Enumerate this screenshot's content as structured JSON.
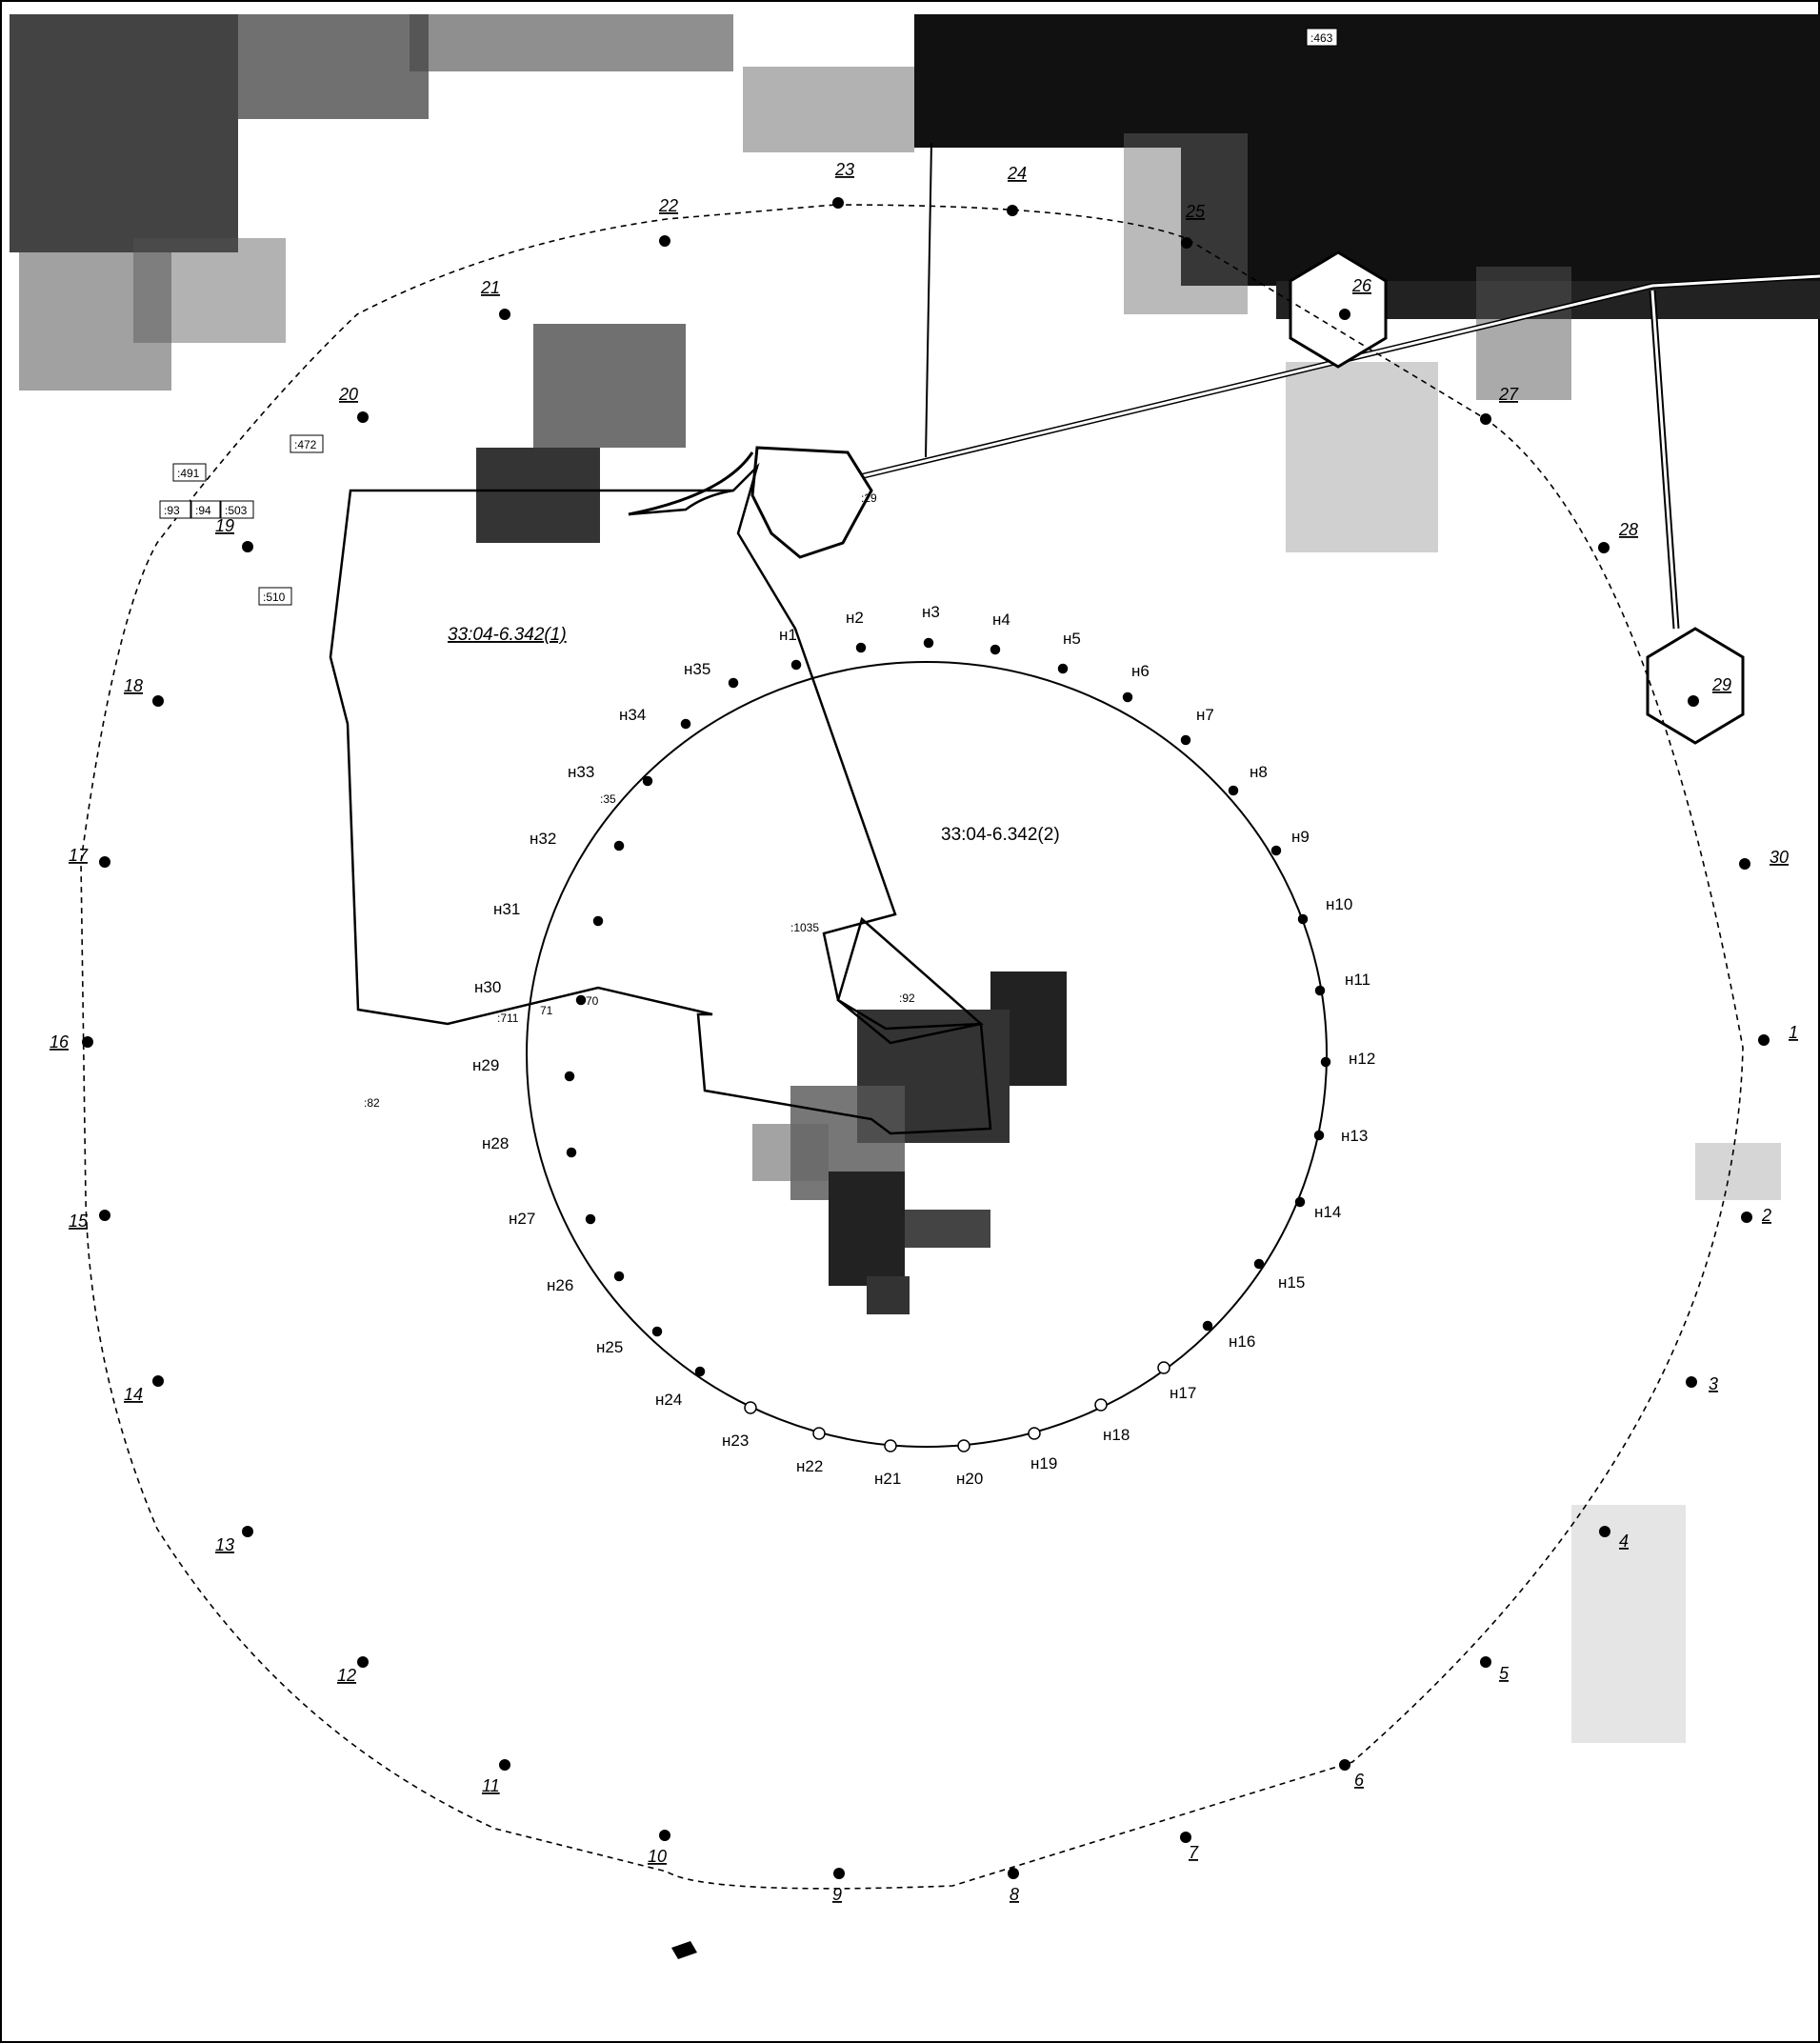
{
  "map": {
    "parcel_labels": {
      "p1": "33:04-6.342(1)",
      "p2": "33:04-6.342(2)"
    },
    "small_labels": {
      "top_tag": ":463",
      "l472": ":472",
      "l491": ":491",
      "l93": ":93",
      "l94": ":94",
      "l503": ":503",
      "l510": ":510",
      "l1035": ":1035",
      "l92": ":92",
      "l35": ":35",
      "l711": ":711",
      "l71": "71",
      "l70": "70",
      "l82": ":82",
      "l29": ":29"
    },
    "outer_points": [
      "1",
      "2",
      "3",
      "4",
      "5",
      "6",
      "7",
      "8",
      "9",
      "10",
      "11",
      "12",
      "13",
      "14",
      "15",
      "16",
      "17",
      "18",
      "19",
      "20",
      "21",
      "22",
      "23",
      "24",
      "25",
      "26",
      "27",
      "28",
      "29",
      "30"
    ],
    "inner_points": [
      "н1",
      "н2",
      "н3",
      "н4",
      "н5",
      "н6",
      "н7",
      "н8",
      "н9",
      "н10",
      "н11",
      "н12",
      "н13",
      "н14",
      "н15",
      "н16",
      "н17",
      "н18",
      "н19",
      "н20",
      "н21",
      "н22",
      "н23",
      "н24",
      "н25",
      "н26",
      "н27",
      "н28",
      "н29",
      "н30",
      "н31",
      "н32",
      "н33",
      "н34",
      "н35"
    ]
  }
}
